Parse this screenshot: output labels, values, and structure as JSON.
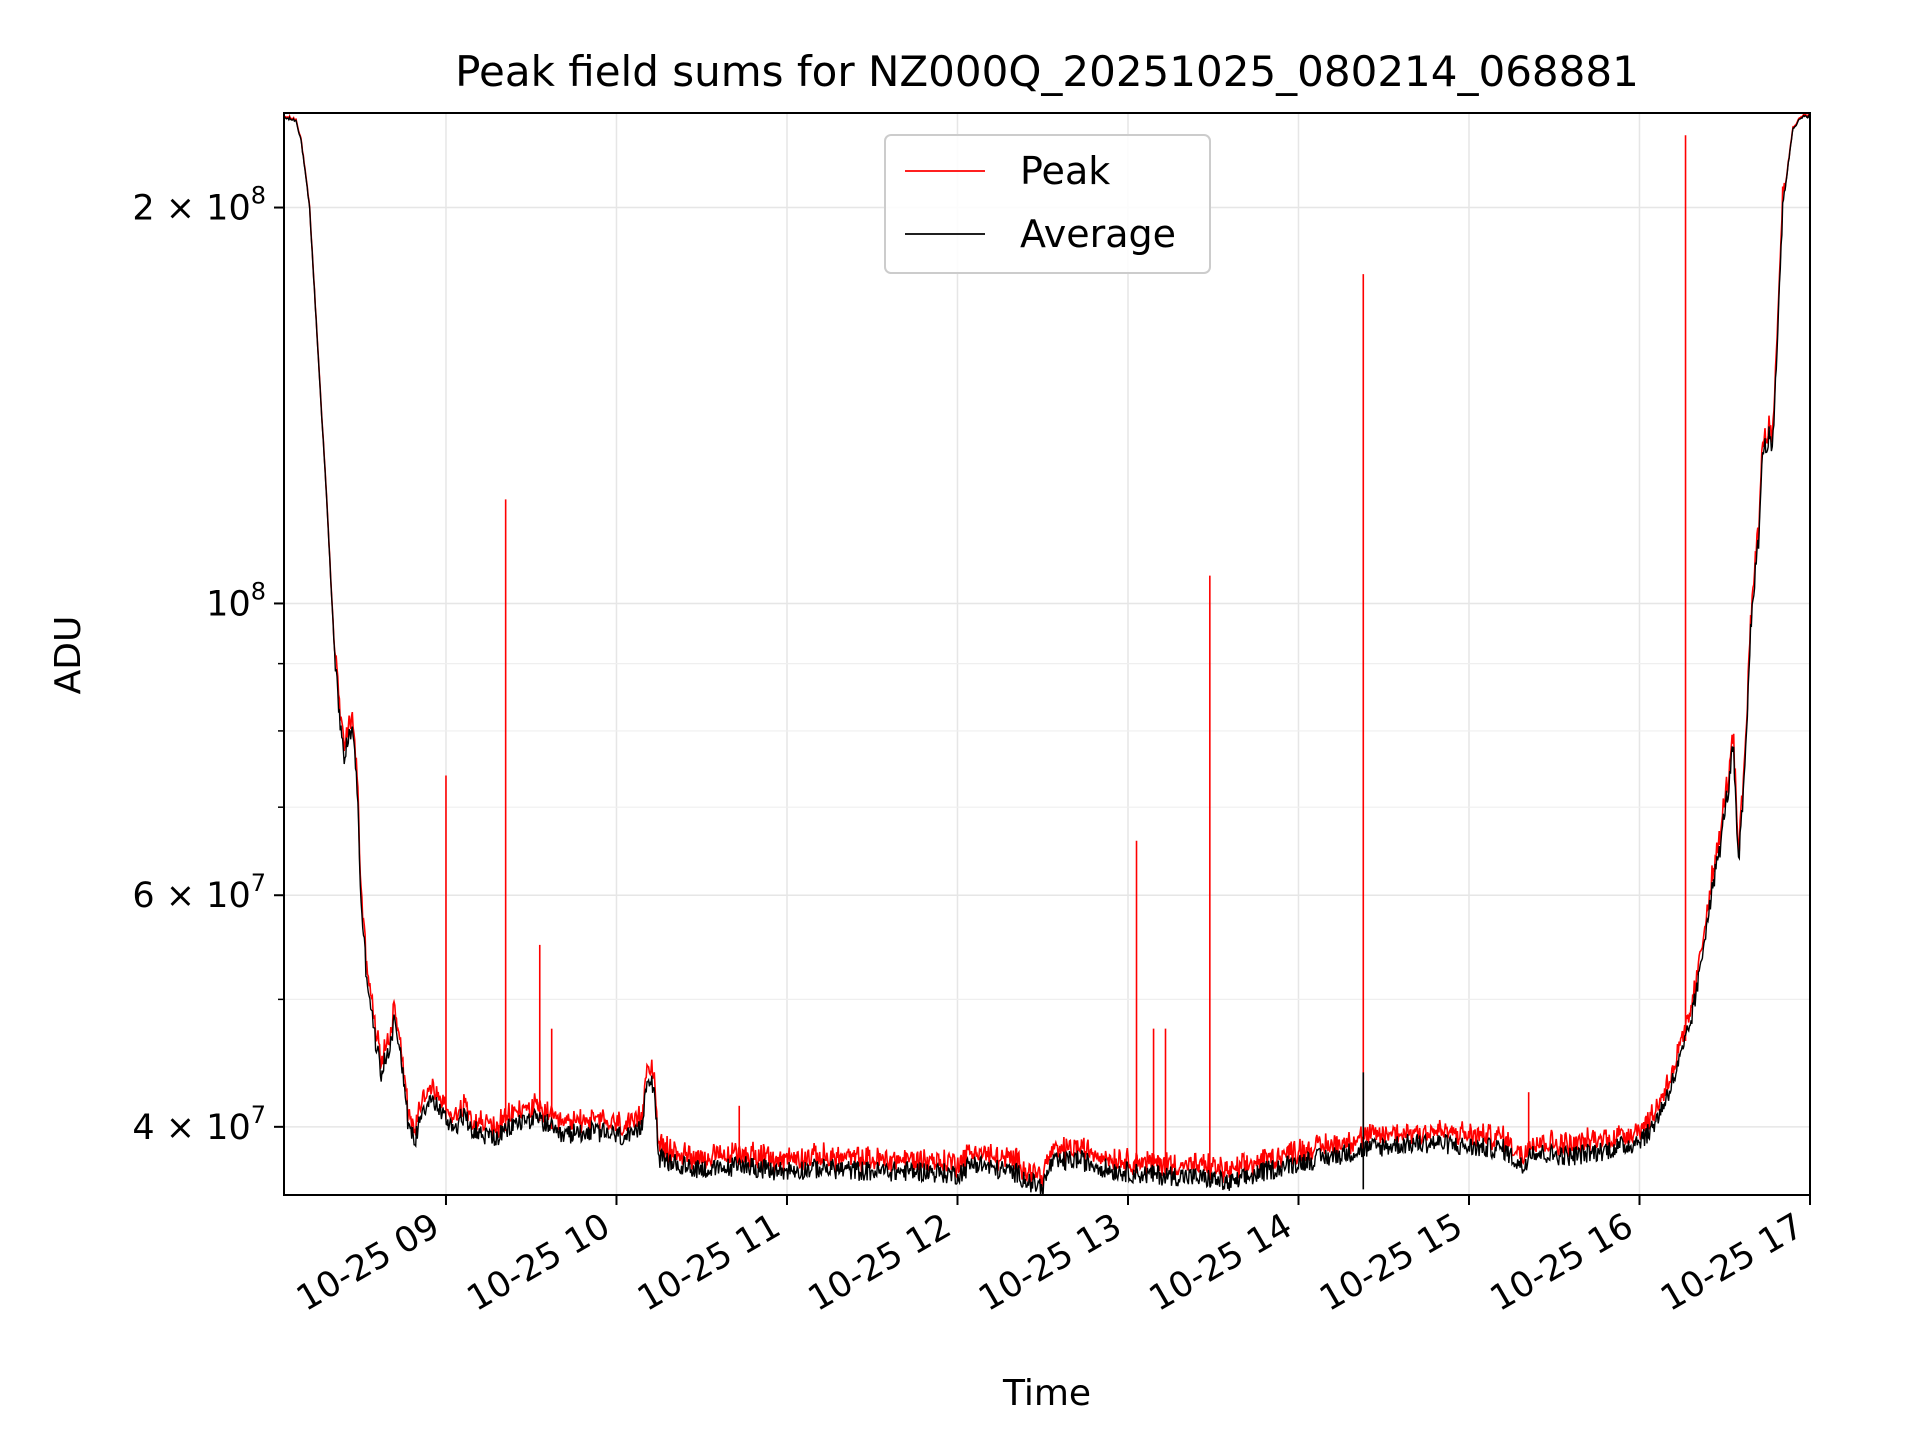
{
  "chart_data": {
    "type": "line",
    "title": "Peak field sums for NZ000Q_20251025_080214_068881",
    "xlabel": "Time",
    "ylabel": "ADU",
    "yscale": "log",
    "xlim": [
      8.05,
      17.0
    ],
    "ylim": [
      35500000,
      236000000
    ],
    "grid": true,
    "legend_position": "top-center",
    "x_ticks": [
      {
        "value": 9,
        "label": "10-25 09"
      },
      {
        "value": 10,
        "label": "10-25 10"
      },
      {
        "value": 11,
        "label": "10-25 11"
      },
      {
        "value": 12,
        "label": "10-25 12"
      },
      {
        "value": 13,
        "label": "10-25 13"
      },
      {
        "value": 14,
        "label": "10-25 14"
      },
      {
        "value": 15,
        "label": "10-25 15"
      },
      {
        "value": 16,
        "label": "10-25 16"
      },
      {
        "value": 17,
        "label": "10-25 17"
      }
    ],
    "y_major_ticks": [
      {
        "value": 40000000,
        "mantissa": "4",
        "exp": "7"
      },
      {
        "value": 60000000,
        "mantissa": "6",
        "exp": "7"
      },
      {
        "value": 100000000,
        "mantissa": "",
        "exp": "8"
      },
      {
        "value": 200000000,
        "mantissa": "2",
        "exp": "8"
      }
    ],
    "y_minor_ticks": [
      50000000,
      70000000,
      80000000,
      90000000
    ],
    "series": [
      {
        "name": "Peak",
        "color": "#ff0000"
      },
      {
        "name": "Average",
        "color": "#000000"
      }
    ],
    "average_profile": {
      "x": [
        8.05,
        8.12,
        8.15,
        8.2,
        8.25,
        8.3,
        8.35,
        8.4,
        8.44,
        8.46,
        8.48,
        8.5,
        8.53,
        8.58,
        8.62,
        8.67,
        8.7,
        8.74,
        8.78,
        8.82,
        8.85,
        8.9,
        8.95,
        9.0,
        9.05,
        9.1,
        9.15,
        9.2,
        9.3,
        9.4,
        9.5,
        9.6,
        9.65,
        9.7,
        9.8,
        9.9,
        10.0,
        10.1,
        10.15,
        10.18,
        10.22,
        10.25,
        10.4,
        10.6,
        10.75,
        10.9,
        11.2,
        11.5,
        11.8,
        12.0,
        12.1,
        12.2,
        12.35,
        12.42,
        12.5,
        12.55,
        12.7,
        12.9,
        13.1,
        13.3,
        13.5,
        13.6,
        13.8,
        14.0,
        14.2,
        14.4,
        14.6,
        14.8,
        15.0,
        15.2,
        15.32,
        15.36,
        15.4,
        15.6,
        15.8,
        15.95,
        16.05,
        16.12,
        16.2,
        16.25,
        16.3,
        16.35,
        16.4,
        16.44,
        16.48,
        16.5,
        16.52,
        16.55,
        16.58,
        16.62,
        16.64,
        16.66,
        16.7,
        16.72,
        16.76,
        16.78,
        16.8,
        16.84,
        16.9,
        16.95,
        17.0
      ],
      "y": [
        234000000,
        233000000,
        225000000,
        200000000,
        155000000,
        120000000,
        90000000,
        76000000,
        80000000,
        79000000,
        72000000,
        60000000,
        53000000,
        47000000,
        44000000,
        46000000,
        48500000,
        45000000,
        40000000,
        39000000,
        41000000,
        42000000,
        41500000,
        40500000,
        40000000,
        40800000,
        40000000,
        39500000,
        39200000,
        40200000,
        40600000,
        40200000,
        39300000,
        39400000,
        39700000,
        39600000,
        39400000,
        39200000,
        40000000,
        44000000,
        43000000,
        37800000,
        37300000,
        37100000,
        37500000,
        37000000,
        37200000,
        37000000,
        37000000,
        36800000,
        37600000,
        37200000,
        36900000,
        36300000,
        36000000,
        37500000,
        37800000,
        37100000,
        36800000,
        36700000,
        36500000,
        36200000,
        37000000,
        37600000,
        38000000,
        38500000,
        38800000,
        38900000,
        38600000,
        38500000,
        37200000,
        38500000,
        38200000,
        38000000,
        38400000,
        38800000,
        39500000,
        41000000,
        43500000,
        45500000,
        48000000,
        52000000,
        58000000,
        62000000,
        66000000,
        70000000,
        72000000,
        78000000,
        63000000,
        75000000,
        88000000,
        100000000,
        112000000,
        130000000,
        134000000,
        130000000,
        150000000,
        200000000,
        230000000,
        234000000,
        235000000
      ]
    },
    "peak_spikes": [
      {
        "x": 9.0,
        "y": 74000000
      },
      {
        "x": 9.35,
        "y": 120000000
      },
      {
        "x": 9.55,
        "y": 55000000
      },
      {
        "x": 9.62,
        "y": 47500000
      },
      {
        "x": 10.72,
        "y": 41500000
      },
      {
        "x": 13.05,
        "y": 66000000
      },
      {
        "x": 13.15,
        "y": 47500000
      },
      {
        "x": 13.22,
        "y": 47500000
      },
      {
        "x": 13.48,
        "y": 105000000
      },
      {
        "x": 14.38,
        "y": 178000000
      },
      {
        "x": 15.35,
        "y": 42500000
      },
      {
        "x": 16.27,
        "y": 227000000
      }
    ],
    "average_spikes": [
      {
        "x": 14.38,
        "y": 44000000
      }
    ]
  }
}
